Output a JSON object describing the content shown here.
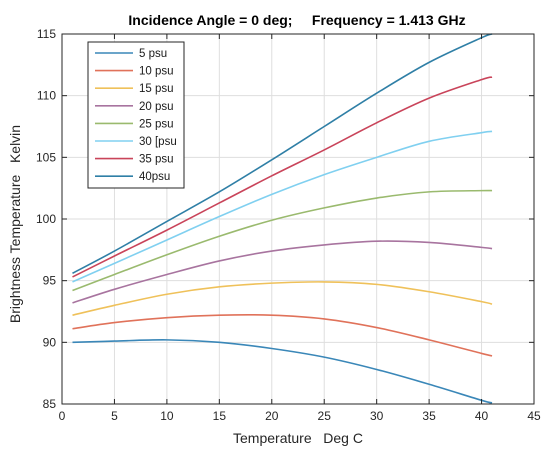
{
  "chart_data": {
    "type": "line",
    "title": "Incidence Angle = 0 deg;     Frequency = 1.413 GHz",
    "xlabel": "Temperature   Deg C",
    "ylabel": "Brightness Temperature   Kelvin",
    "xlim": [
      0,
      45
    ],
    "ylim": [
      85,
      115
    ],
    "xticks": [
      0,
      5,
      10,
      15,
      20,
      25,
      30,
      35,
      40,
      45
    ],
    "yticks": [
      85,
      90,
      95,
      100,
      105,
      110,
      115
    ],
    "grid": true,
    "legend_position": "top-left",
    "x": [
      1,
      5,
      10,
      15,
      20,
      25,
      30,
      35,
      40,
      41
    ],
    "series": [
      {
        "name": "5 psu",
        "color": "#3a87b8",
        "values": [
          90.0,
          90.1,
          90.2,
          90.0,
          89.5,
          88.8,
          87.8,
          86.6,
          85.3,
          85.1
        ]
      },
      {
        "name": "10 psu",
        "color": "#e0725a",
        "values": [
          91.1,
          91.6,
          92.0,
          92.2,
          92.2,
          91.9,
          91.2,
          90.2,
          89.1,
          88.9
        ]
      },
      {
        "name": "15 psu",
        "color": "#efc15a",
        "values": [
          92.2,
          93.0,
          93.9,
          94.5,
          94.8,
          94.9,
          94.7,
          94.1,
          93.3,
          93.1
        ]
      },
      {
        "name": "20 psu",
        "color": "#a8749f",
        "values": [
          93.2,
          94.3,
          95.5,
          96.6,
          97.4,
          97.9,
          98.2,
          98.1,
          97.7,
          97.6
        ]
      },
      {
        "name": "25 psu",
        "color": "#9aba6e",
        "values": [
          94.2,
          95.5,
          97.1,
          98.6,
          99.9,
          100.9,
          101.7,
          102.2,
          102.3,
          102.3
        ]
      },
      {
        "name": "30 [psu",
        "color": "#80d0f0",
        "values": [
          94.9,
          96.4,
          98.3,
          100.2,
          102.0,
          103.6,
          105.0,
          106.3,
          107.0,
          107.1
        ]
      },
      {
        "name": "35 psu",
        "color": "#c9445a",
        "values": [
          95.3,
          97.0,
          99.1,
          101.3,
          103.5,
          105.6,
          107.8,
          109.8,
          111.3,
          111.5
        ]
      },
      {
        "name": "40psu",
        "color": "#2f7fa6",
        "values": [
          95.6,
          97.4,
          99.8,
          102.2,
          104.8,
          107.5,
          110.2,
          112.7,
          114.7,
          115.0
        ]
      }
    ]
  }
}
